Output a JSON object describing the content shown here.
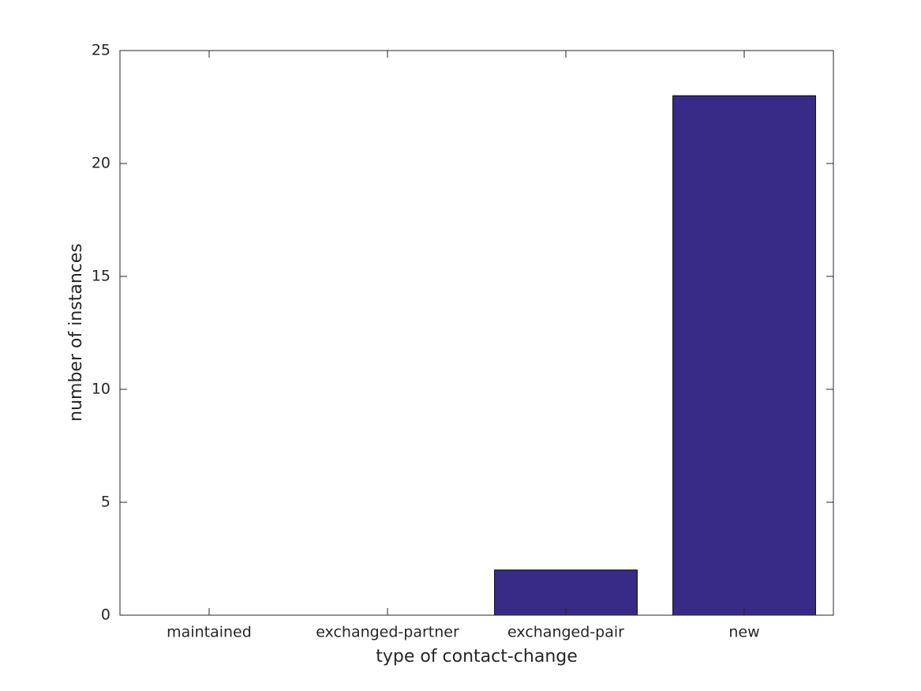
{
  "chart_data": {
    "type": "bar",
    "xlabel": "type of contact-change",
    "ylabel": "number of instances",
    "categories": [
      "maintained",
      "exchanged-partner",
      "exchanged-pair",
      "new"
    ],
    "values": [
      0,
      0,
      2,
      23
    ],
    "color": "#372b87",
    "ylim": [
      0,
      25
    ],
    "yticks": [
      0,
      5,
      10,
      15,
      20,
      25
    ],
    "grid": false
  }
}
